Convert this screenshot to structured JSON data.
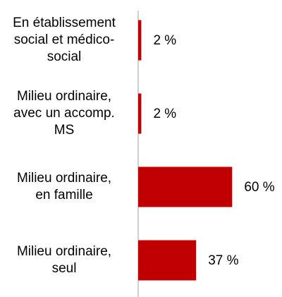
{
  "chart_data": {
    "type": "barh",
    "categories": [
      "En établissement\nsocial et médico-\nsocial",
      "Milieu ordinaire,\navec un accomp.\nMS",
      "Milieu ordinaire,\nen famille",
      "Milieu ordinaire,\nseul"
    ],
    "values": [
      2,
      2,
      60,
      37
    ],
    "value_labels": [
      "2 %",
      "2 %",
      "60 %",
      "37 %"
    ],
    "color": "#c00000",
    "xlim": [
      0,
      90
    ]
  }
}
